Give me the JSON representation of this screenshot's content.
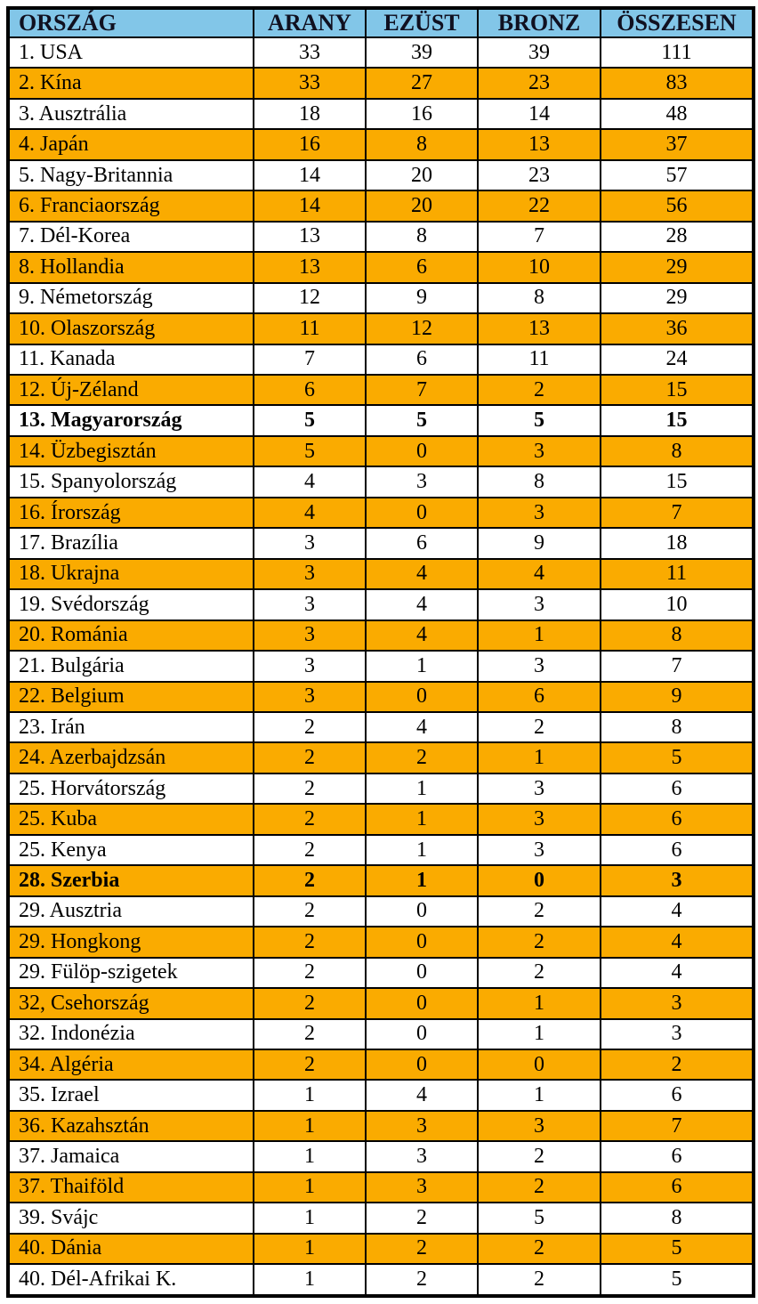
{
  "colors": {
    "header_bg": "#82c6e8",
    "header_text": "#101020",
    "highlight_bg": "#faab00",
    "row_bg": "#ffffff",
    "border": "#000000",
    "text": "#000000"
  },
  "table": {
    "columns": [
      "ORSZÁG",
      "ARANY",
      "EZÜST",
      "BRONZ",
      "ÖSSZESEN"
    ],
    "rows": [
      {
        "country": "1. USA",
        "gold": 33,
        "silver": 39,
        "bronze": 39,
        "total": 111,
        "highlight": false,
        "bold": false
      },
      {
        "country": "2. Kína",
        "gold": 33,
        "silver": 27,
        "bronze": 23,
        "total": 83,
        "highlight": true,
        "bold": false
      },
      {
        "country": "3. Ausztrália",
        "gold": 18,
        "silver": 16,
        "bronze": 14,
        "total": 48,
        "highlight": false,
        "bold": false
      },
      {
        "country": "4. Japán",
        "gold": 16,
        "silver": 8,
        "bronze": 13,
        "total": 37,
        "highlight": true,
        "bold": false
      },
      {
        "country": "5. Nagy-Britannia",
        "gold": 14,
        "silver": 20,
        "bronze": 23,
        "total": 57,
        "highlight": false,
        "bold": false
      },
      {
        "country": "6. Franciaország",
        "gold": 14,
        "silver": 20,
        "bronze": 22,
        "total": 56,
        "highlight": true,
        "bold": false
      },
      {
        "country": "7. Dél-Korea",
        "gold": 13,
        "silver": 8,
        "bronze": 7,
        "total": 28,
        "highlight": false,
        "bold": false
      },
      {
        "country": "8. Hollandia",
        "gold": 13,
        "silver": 6,
        "bronze": 10,
        "total": 29,
        "highlight": true,
        "bold": false
      },
      {
        "country": "9. Németország",
        "gold": 12,
        "silver": 9,
        "bronze": 8,
        "total": 29,
        "highlight": false,
        "bold": false
      },
      {
        "country": "10. Olaszország",
        "gold": 11,
        "silver": 12,
        "bronze": 13,
        "total": 36,
        "highlight": true,
        "bold": false
      },
      {
        "country": "11. Kanada",
        "gold": 7,
        "silver": 6,
        "bronze": 11,
        "total": 24,
        "highlight": false,
        "bold": false
      },
      {
        "country": "12. Új-Zéland",
        "gold": 6,
        "silver": 7,
        "bronze": 2,
        "total": 15,
        "highlight": true,
        "bold": false
      },
      {
        "country": "13. Magyarország",
        "gold": 5,
        "silver": 5,
        "bronze": 5,
        "total": 15,
        "highlight": false,
        "bold": true
      },
      {
        "country": "14. Üzbegisztán",
        "gold": 5,
        "silver": 0,
        "bronze": 3,
        "total": 8,
        "highlight": true,
        "bold": false
      },
      {
        "country": "15. Spanyolország",
        "gold": 4,
        "silver": 3,
        "bronze": 8,
        "total": 15,
        "highlight": false,
        "bold": false
      },
      {
        "country": "16. Írország",
        "gold": 4,
        "silver": 0,
        "bronze": 3,
        "total": 7,
        "highlight": true,
        "bold": false
      },
      {
        "country": "17. Brazília",
        "gold": 3,
        "silver": 6,
        "bronze": 9,
        "total": 18,
        "highlight": false,
        "bold": false
      },
      {
        "country": "18. Ukrajna",
        "gold": 3,
        "silver": 4,
        "bronze": 4,
        "total": 11,
        "highlight": true,
        "bold": false
      },
      {
        "country": "19. Svédország",
        "gold": 3,
        "silver": 4,
        "bronze": 3,
        "total": 10,
        "highlight": false,
        "bold": false
      },
      {
        "country": "20. Románia",
        "gold": 3,
        "silver": 4,
        "bronze": 1,
        "total": 8,
        "highlight": true,
        "bold": false
      },
      {
        "country": "21. Bulgária",
        "gold": 3,
        "silver": 1,
        "bronze": 3,
        "total": 7,
        "highlight": false,
        "bold": false
      },
      {
        "country": "22. Belgium",
        "gold": 3,
        "silver": 0,
        "bronze": 6,
        "total": 9,
        "highlight": true,
        "bold": false
      },
      {
        "country": "23. Irán",
        "gold": 2,
        "silver": 4,
        "bronze": 2,
        "total": 8,
        "highlight": false,
        "bold": false
      },
      {
        "country": "24. Azerbajdzsán",
        "gold": 2,
        "silver": 2,
        "bronze": 1,
        "total": 5,
        "highlight": true,
        "bold": false
      },
      {
        "country": "25. Horvátország",
        "gold": 2,
        "silver": 1,
        "bronze": 3,
        "total": 6,
        "highlight": false,
        "bold": false
      },
      {
        "country": "25. Kuba",
        "gold": 2,
        "silver": 1,
        "bronze": 3,
        "total": 6,
        "highlight": true,
        "bold": false
      },
      {
        "country": "25. Kenya",
        "gold": 2,
        "silver": 1,
        "bronze": 3,
        "total": 6,
        "highlight": false,
        "bold": false
      },
      {
        "country": "28. Szerbia",
        "gold": 2,
        "silver": 1,
        "bronze": 0,
        "total": 3,
        "highlight": true,
        "bold": true
      },
      {
        "country": "29. Ausztria",
        "gold": 2,
        "silver": 0,
        "bronze": 2,
        "total": 4,
        "highlight": false,
        "bold": false
      },
      {
        "country": "29. Hongkong",
        "gold": 2,
        "silver": 0,
        "bronze": 2,
        "total": 4,
        "highlight": true,
        "bold": false
      },
      {
        "country": "29. Fülöp-szigetek",
        "gold": 2,
        "silver": 0,
        "bronze": 2,
        "total": 4,
        "highlight": false,
        "bold": false
      },
      {
        "country": "32, Csehország",
        "gold": 2,
        "silver": 0,
        "bronze": 1,
        "total": 3,
        "highlight": true,
        "bold": false
      },
      {
        "country": "32. Indonézia",
        "gold": 2,
        "silver": 0,
        "bronze": 1,
        "total": 3,
        "highlight": false,
        "bold": false
      },
      {
        "country": "34. Algéria",
        "gold": 2,
        "silver": 0,
        "bronze": 0,
        "total": 2,
        "highlight": true,
        "bold": false
      },
      {
        "country": "35. Izrael",
        "gold": 1,
        "silver": 4,
        "bronze": 1,
        "total": 6,
        "highlight": false,
        "bold": false
      },
      {
        "country": "36. Kazahsztán",
        "gold": 1,
        "silver": 3,
        "bronze": 3,
        "total": 7,
        "highlight": true,
        "bold": false
      },
      {
        "country": "37. Jamaica",
        "gold": 1,
        "silver": 3,
        "bronze": 2,
        "total": 6,
        "highlight": false,
        "bold": false
      },
      {
        "country": "37. Thaiföld",
        "gold": 1,
        "silver": 3,
        "bronze": 2,
        "total": 6,
        "highlight": true,
        "bold": false
      },
      {
        "country": "39. Svájc",
        "gold": 1,
        "silver": 2,
        "bronze": 5,
        "total": 8,
        "highlight": false,
        "bold": false
      },
      {
        "country": "40. Dánia",
        "gold": 1,
        "silver": 2,
        "bronze": 2,
        "total": 5,
        "highlight": true,
        "bold": false
      },
      {
        "country": "40. Dél-Afrikai K.",
        "gold": 1,
        "silver": 2,
        "bronze": 2,
        "total": 5,
        "highlight": false,
        "bold": false
      }
    ]
  }
}
